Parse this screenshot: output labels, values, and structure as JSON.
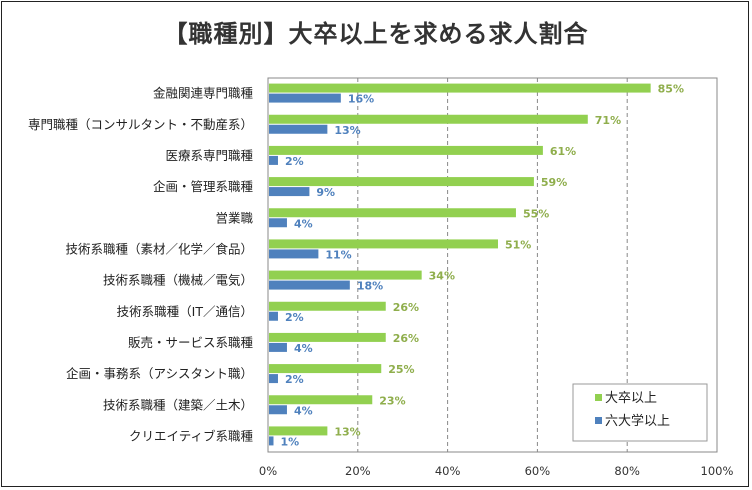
{
  "chart_data": {
    "type": "bar",
    "orientation": "horizontal",
    "title": "【職種別】大卒以上を求める求人割合",
    "categories": [
      "金融関連専門職種",
      "専門職種（コンサルタント・不動産系）",
      "医療系専門職種",
      "企画・管理系職種",
      "営業職",
      "技術系職種（素材／化学／食品）",
      "技術系職種（機械／電気）",
      "技術系職種（IT／通信）",
      "販売・サービス系職種",
      "企画・事務系（アシスタント職）",
      "技術系職種（建築／土木）",
      "クリエイティブ系職種"
    ],
    "series": [
      {
        "name": "大卒以上",
        "color": "#92d050",
        "label_color": "#8fae4c",
        "values": [
          85,
          71,
          61,
          59,
          55,
          51,
          34,
          26,
          26,
          25,
          23,
          13
        ]
      },
      {
        "name": "六大学以上",
        "color": "#4f81bd",
        "label_color": "#4f81bd",
        "values": [
          16,
          13,
          2,
          9,
          4,
          11,
          18,
          2,
          4,
          2,
          4,
          1
        ]
      }
    ],
    "xlim": [
      0,
      100
    ],
    "xticks": [
      "0%",
      "20%",
      "40%",
      "60%",
      "80%",
      "100%"
    ],
    "grid": "vertical dashed",
    "legend": "bottom-right"
  }
}
